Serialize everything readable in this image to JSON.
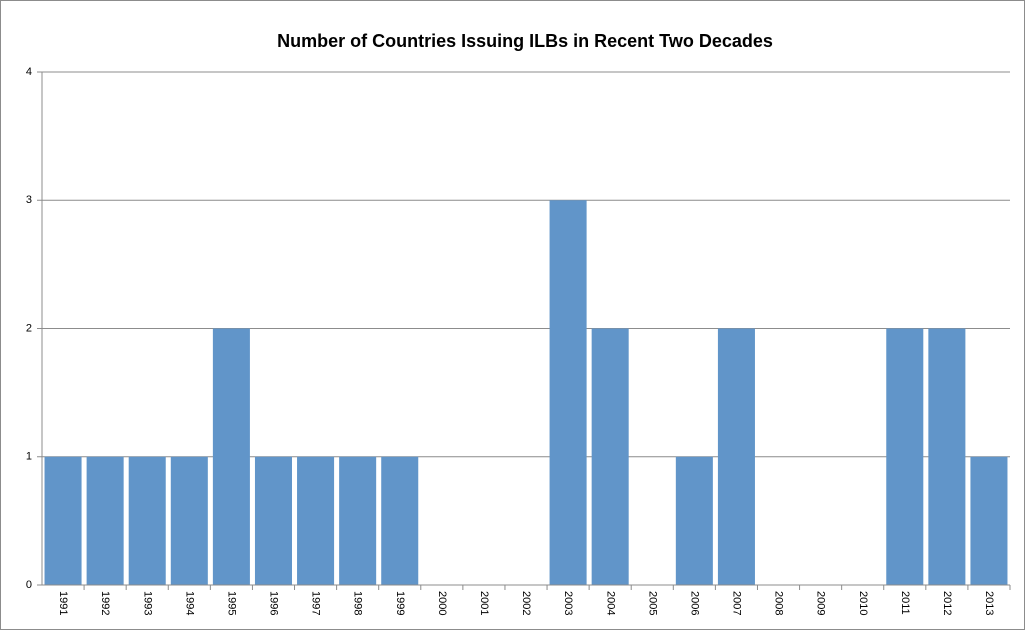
{
  "chart_data": {
    "type": "bar",
    "title": "Number of Countries Issuing ILBs in Recent Two Decades",
    "categories": [
      "1991",
      "1992",
      "1993",
      "1994",
      "1995",
      "1996",
      "1997",
      "1998",
      "1999",
      "2000",
      "2001",
      "2002",
      "2003",
      "2004",
      "2005",
      "2006",
      "2007",
      "2008",
      "2009",
      "2010",
      "2011",
      "2012",
      "2013"
    ],
    "values": [
      1,
      1,
      1,
      1,
      2,
      1,
      1,
      1,
      1,
      0,
      0,
      0,
      3,
      2,
      0,
      1,
      2,
      0,
      0,
      0,
      2,
      2,
      1
    ],
    "color": "#6195c9",
    "ylim": [
      0,
      4
    ],
    "yticks": [
      0,
      1,
      2,
      3,
      4
    ],
    "grid": true
  }
}
